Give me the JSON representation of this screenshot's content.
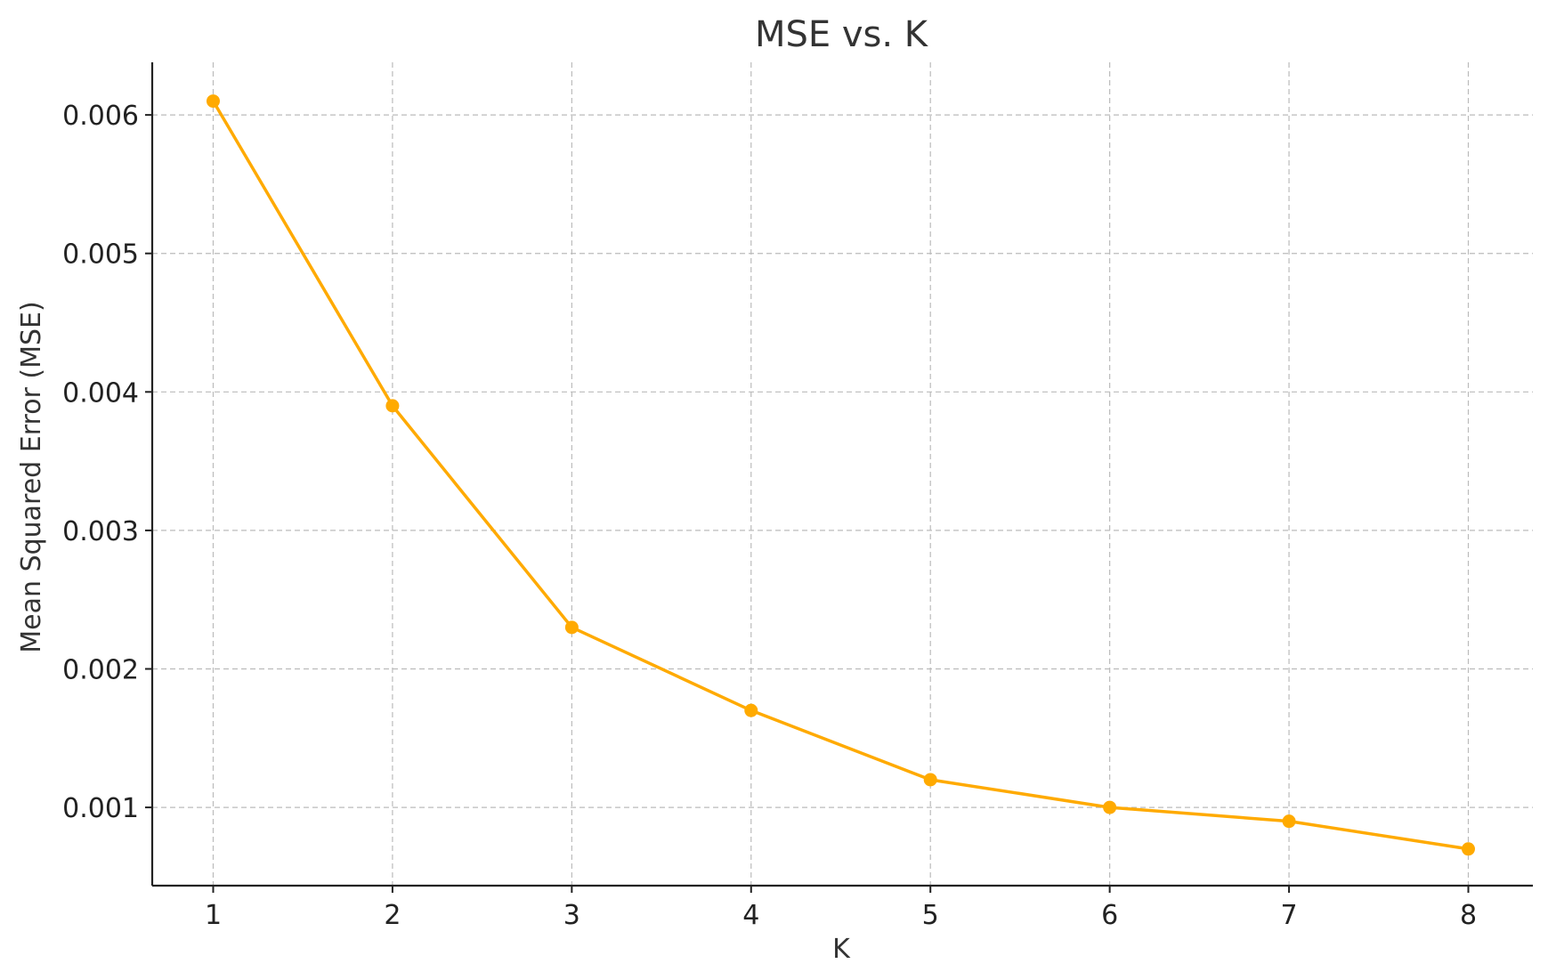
{
  "chart_data": {
    "type": "line",
    "title": "MSE vs. K",
    "xlabel": "K",
    "ylabel": "Mean Squared Error (MSE)",
    "x": [
      1,
      2,
      3,
      4,
      5,
      6,
      7,
      8
    ],
    "series": [
      {
        "values": [
          0.0061,
          0.0039,
          0.0023,
          0.0017,
          0.0012,
          0.001,
          0.0009,
          0.0007
        ],
        "color": "#FFAA00",
        "marker": "circle"
      }
    ],
    "xticks": [
      "1",
      "2",
      "3",
      "4",
      "5",
      "6",
      "7",
      "8"
    ],
    "yticks": [
      "0.001",
      "0.002",
      "0.003",
      "0.004",
      "0.005",
      "0.006"
    ],
    "ytick_values": [
      0.001,
      0.002,
      0.003,
      0.004,
      0.005,
      0.006
    ],
    "xlim": [
      0.66,
      8.36
    ],
    "ylim": [
      0.000435,
      0.00638
    ],
    "grid": true,
    "grid_style": "dashed",
    "legend": "none"
  }
}
